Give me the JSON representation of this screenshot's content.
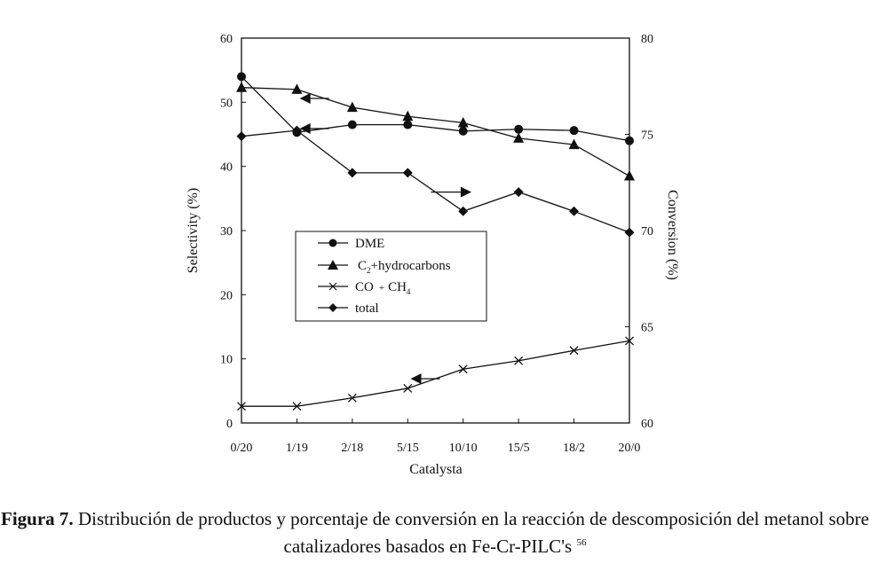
{
  "chart_data": {
    "type": "line",
    "categories": [
      "0/20",
      "1/19",
      "2/18",
      "5/15",
      "10/10",
      "15/5",
      "18/2",
      "20/0"
    ],
    "xlabel": "Catalysta",
    "ylabel": "Selectivity (%)",
    "y2label": "Conversion (%)",
    "ylim": [
      0,
      60
    ],
    "y2lim": [
      60,
      80
    ],
    "yticks": [
      "0",
      "10",
      "20",
      "30",
      "40",
      "50",
      "60"
    ],
    "y2ticks": [
      "60",
      "65",
      "70",
      "75",
      "80"
    ],
    "grid": false,
    "legend_position": "center-left",
    "series": [
      {
        "name": "DME",
        "marker": "circle",
        "axis": "left",
        "values": [
          54,
          45.3,
          46.5,
          46.5,
          45.5,
          45.8,
          45.6,
          44
        ]
      },
      {
        "name": "C2+hydrocarbons",
        "marker": "triangle",
        "axis": "left",
        "values": [
          52.3,
          52,
          49.2,
          47.8,
          46.8,
          44.4,
          43.4,
          38.5
        ]
      },
      {
        "name": "CO + CH4",
        "marker": "x",
        "axis": "left",
        "values": [
          2.6,
          2.6,
          3.9,
          5.4,
          8.4,
          9.7,
          11.3,
          12.8
        ]
      },
      {
        "name": "total",
        "marker": "diamond",
        "axis": "right",
        "values": [
          74.9,
          75.2,
          73.0,
          73.0,
          71.0,
          72.0,
          71.0,
          69.9
        ]
      }
    ],
    "axis_arrows": [
      {
        "series": "C2+hydrocarbons",
        "direction": "left"
      },
      {
        "series": "DME",
        "direction": "left"
      },
      {
        "series": "total",
        "direction": "right"
      },
      {
        "series": "CO + CH4",
        "direction": "left"
      }
    ]
  },
  "legend": {
    "dme": "DME",
    "c2_prefix": "C",
    "c2_sub": "2",
    "c2_suffix": "+hydrocarbons",
    "co_prefix": "CO",
    "co_plus": "+",
    "co_ch": "CH",
    "co_sub": "4",
    "total": "total"
  },
  "caption": {
    "label": "Figura 7.",
    "text": "Distribución de productos y porcentaje de conversión en la reacción de descomposición del metanol sobre catalizadores basados en Fe-Cr-PILC's",
    "ref": "56"
  }
}
